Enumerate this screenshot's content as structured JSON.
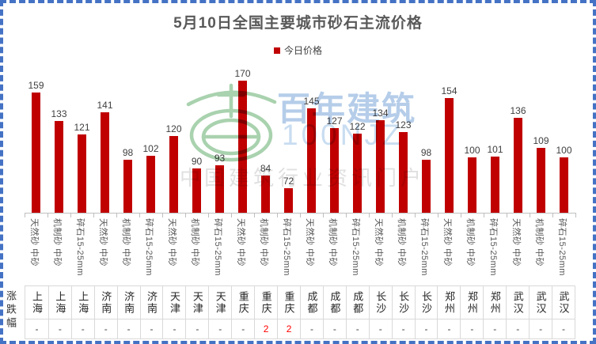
{
  "title": "5月10日全国主要城市砂石主流价格",
  "legend": {
    "label": "今日价格"
  },
  "watermark": {
    "logo": "green-emblem-logo",
    "brand": "百年建筑",
    "code": "100NJZ",
    "slogan": "中国建筑行业资讯门户",
    "logo_color": "#a9d2ae",
    "brand_color": "#b5cde9",
    "slogan_color": "#e0e0e0"
  },
  "table": {
    "row_label": "涨跌幅"
  },
  "colors": {
    "bar": "#C00000",
    "change_highlight": "#FF0000",
    "frame_border": "#4472C4",
    "axis": "#BFBFBF",
    "title_text": "#595959"
  },
  "chart_data": {
    "type": "bar",
    "title": "5月10日全国主要城市砂石主流价格",
    "series_name": "今日价格",
    "bar_color": "#C00000",
    "ylim": [
      50,
      180
    ],
    "grid": false,
    "legend_position": "top-center",
    "cities": [
      "上海",
      "上海",
      "上海",
      "济南",
      "济南",
      "济南",
      "天津",
      "天津",
      "天津",
      "重庆",
      "重庆",
      "重庆",
      "成都",
      "成都",
      "成都",
      "长沙",
      "长沙",
      "长沙",
      "郑州",
      "郑州",
      "郑州",
      "武汉",
      "武汉",
      "武汉"
    ],
    "specs": [
      "天然砂 中砂",
      "机制砂 中砂",
      "碎石15-25mm",
      "天然砂 中砂",
      "机制砂 中砂",
      "碎石15-25mm",
      "天然砂 中砂",
      "机制砂 中砂",
      "碎石15-25mm",
      "天然砂 中砂",
      "机制砂 中砂",
      "碎石15-25mm",
      "天然砂 中砂",
      "机制砂 中砂",
      "碎石15-25mm",
      "天然砂 中砂",
      "机制砂 中砂",
      "碎石15-25mm",
      "天然砂 中砂",
      "机制砂 中砂",
      "碎石15-25mm",
      "天然砂 中砂",
      "机制砂 中砂",
      "碎石15-25mm"
    ],
    "values": [
      159,
      133,
      121,
      141,
      98,
      102,
      120,
      90,
      93,
      170,
      84,
      72,
      145,
      127,
      122,
      134,
      123,
      98,
      154,
      100,
      101,
      136,
      109,
      100
    ],
    "changes": [
      "-",
      "-",
      "-",
      "-",
      "-",
      "-",
      "-",
      "-",
      "-",
      "-",
      "2",
      "2",
      "-",
      "-",
      "-",
      "-",
      "-",
      "-",
      "-",
      "-",
      "-",
      "-",
      "-",
      "-"
    ]
  }
}
